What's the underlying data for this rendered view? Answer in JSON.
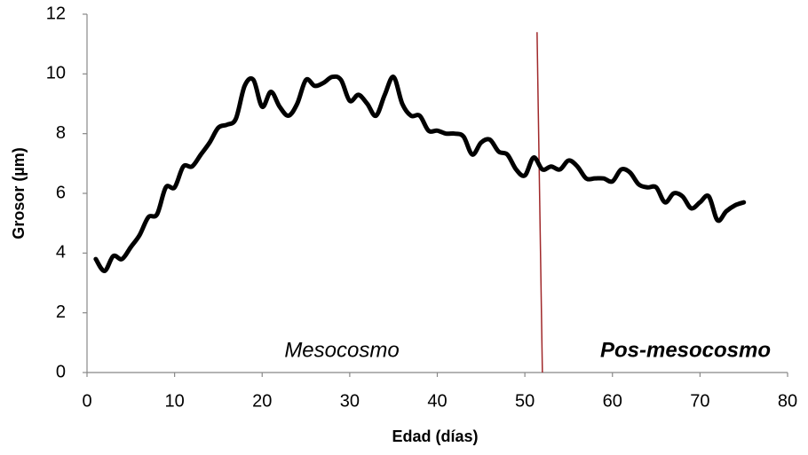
{
  "chart_data": {
    "type": "line",
    "x_label": "Edad (días)",
    "y_label": "Grosor (µm)",
    "annotations": [
      "Mesocosmo",
      "Pos-mesocosmo"
    ],
    "vline_x": 52,
    "vline_color": "#a0282a",
    "xlim": [
      0,
      80
    ],
    "xticks": [
      0,
      10,
      20,
      30,
      40,
      50,
      60,
      70,
      80
    ],
    "ylim": [
      0,
      12
    ],
    "yticks": [
      0,
      2,
      4,
      6,
      8,
      10,
      12
    ],
    "grid": false,
    "series": [
      {
        "name": "Grosor",
        "color": "#000000",
        "x": [
          1,
          2,
          3,
          4,
          5,
          6,
          7,
          8,
          9,
          10,
          11,
          12,
          13,
          14,
          15,
          16,
          17,
          18,
          19,
          20,
          21,
          22,
          23,
          24,
          25,
          26,
          27,
          28,
          29,
          30,
          31,
          32,
          33,
          34,
          35,
          36,
          37,
          38,
          39,
          40,
          41,
          42,
          43,
          44,
          45,
          46,
          47,
          48,
          49,
          50,
          51,
          52,
          53,
          54,
          55,
          56,
          57,
          58,
          59,
          60,
          61,
          62,
          63,
          64,
          65,
          66,
          67,
          68,
          69,
          70,
          71,
          72,
          73,
          74,
          75
        ],
        "values": [
          3.8,
          3.4,
          3.9,
          3.8,
          4.2,
          4.6,
          5.2,
          5.3,
          6.2,
          6.2,
          6.9,
          6.9,
          7.3,
          7.7,
          8.2,
          8.3,
          8.5,
          9.6,
          9.8,
          8.9,
          9.4,
          8.9,
          8.6,
          9.0,
          9.8,
          9.6,
          9.7,
          9.9,
          9.8,
          9.1,
          9.3,
          9.0,
          8.6,
          9.3,
          9.9,
          9.0,
          8.6,
          8.6,
          8.1,
          8.1,
          8.0,
          8.0,
          7.9,
          7.3,
          7.7,
          7.8,
          7.4,
          7.3,
          6.8,
          6.6,
          7.2,
          6.8,
          6.9,
          6.8,
          7.1,
          6.9,
          6.5,
          6.5,
          6.5,
          6.4,
          6.8,
          6.7,
          6.3,
          6.2,
          6.2,
          5.7,
          6.0,
          5.9,
          5.5,
          5.7,
          5.9,
          5.1,
          5.4,
          5.6,
          5.7
        ]
      }
    ]
  }
}
